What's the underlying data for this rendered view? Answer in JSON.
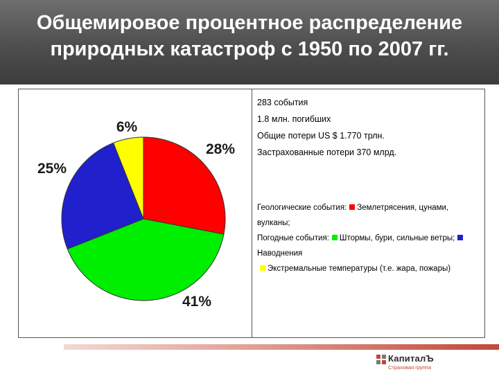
{
  "title": {
    "line1": "Общемировое процентное распределение",
    "line2": "природных катастроф с 1950 по 2007 гг."
  },
  "stats": [
    "283 события",
    "1.8 млн. погибших",
    "Общие потери US $ 1.770 трлн.",
    "Застрахованные потери 370 млрд."
  ],
  "legend": {
    "geo_label": "Геологические события:",
    "geo_item": "Землетрясения, цунами, вулканы;",
    "weather_label": "Погодные события:",
    "weather_item1": "Штормы, бури, сильные ветры;",
    "weather_item2": "Наводнения",
    "extreme_item": "Экстремальные температуры (т.е. жара, пожары)"
  },
  "colors": {
    "geo": "#ff0000",
    "storms": "#00ee00",
    "floods": "#2020cc",
    "extreme": "#ffff00"
  },
  "logo": {
    "brand": "КапиталЪ",
    "subtitle": "Страховая группа"
  },
  "chart_data": {
    "type": "pie",
    "title": "",
    "slices": [
      {
        "label": "28%",
        "value": 28,
        "color": "#ff0000"
      },
      {
        "label": "41%",
        "value": 41,
        "color": "#00ee00"
      },
      {
        "label": "25%",
        "value": 25,
        "color": "#2020cc"
      },
      {
        "label": "6%",
        "value": 6,
        "color": "#ffff00"
      }
    ]
  }
}
